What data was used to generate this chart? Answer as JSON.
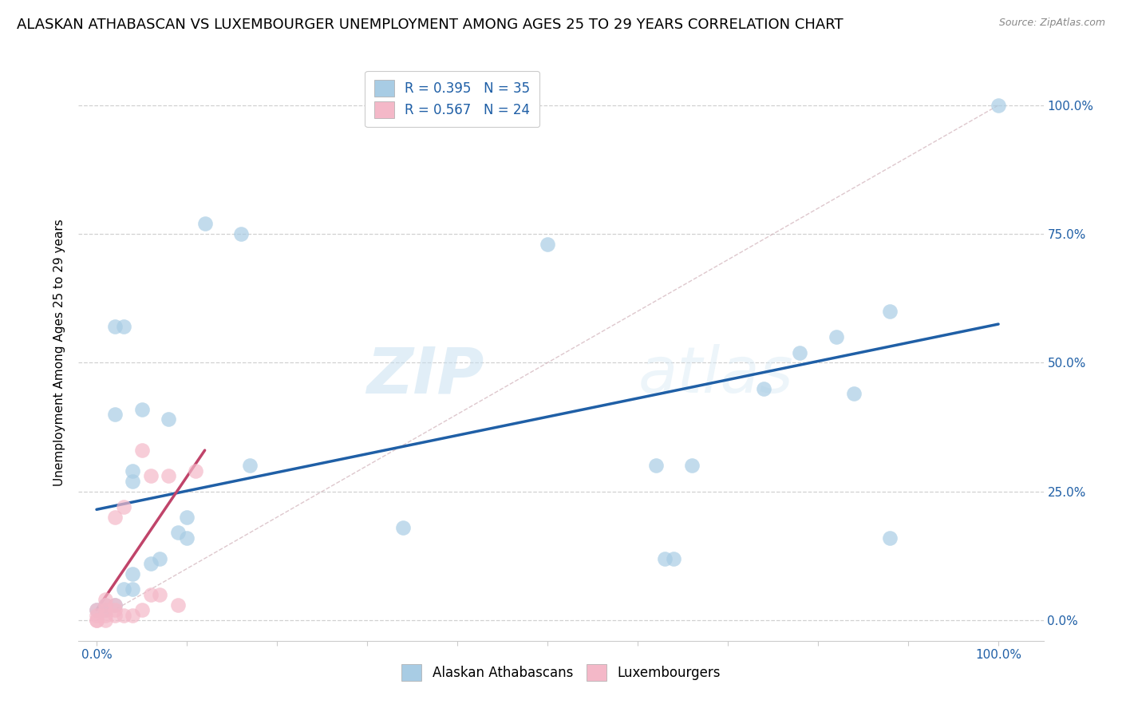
{
  "title": "ALASKAN ATHABASCAN VS LUXEMBOURGER UNEMPLOYMENT AMONG AGES 25 TO 29 YEARS CORRELATION CHART",
  "source": "Source: ZipAtlas.com",
  "ylabel": "Unemployment Among Ages 25 to 29 years",
  "watermark": "ZIPatlas",
  "blue_scatter_x": [
    0.02,
    0.03,
    0.12,
    0.16,
    0.5,
    0.02,
    0.04,
    0.04,
    0.05,
    0.08,
    0.09,
    0.1,
    0.1,
    0.17,
    0.34,
    0.62,
    0.66,
    0.74,
    0.78,
    0.82,
    0.84,
    0.88,
    1.0,
    0.0,
    0.01,
    0.01,
    0.02,
    0.03,
    0.04,
    0.04,
    0.06,
    0.07,
    0.63,
    0.64,
    0.88
  ],
  "blue_scatter_y": [
    0.57,
    0.57,
    0.77,
    0.75,
    0.73,
    0.4,
    0.29,
    0.27,
    0.41,
    0.39,
    0.17,
    0.2,
    0.16,
    0.3,
    0.18,
    0.3,
    0.3,
    0.45,
    0.52,
    0.55,
    0.44,
    0.6,
    1.0,
    0.02,
    0.02,
    0.03,
    0.03,
    0.06,
    0.06,
    0.09,
    0.11,
    0.12,
    0.12,
    0.12,
    0.16
  ],
  "pink_scatter_x": [
    0.0,
    0.0,
    0.0,
    0.0,
    0.01,
    0.01,
    0.01,
    0.01,
    0.01,
    0.02,
    0.02,
    0.02,
    0.02,
    0.03,
    0.03,
    0.04,
    0.05,
    0.05,
    0.06,
    0.06,
    0.07,
    0.08,
    0.09,
    0.11
  ],
  "pink_scatter_y": [
    0.0,
    0.0,
    0.01,
    0.02,
    0.0,
    0.01,
    0.02,
    0.03,
    0.04,
    0.01,
    0.02,
    0.03,
    0.2,
    0.01,
    0.22,
    0.01,
    0.02,
    0.33,
    0.05,
    0.28,
    0.05,
    0.28,
    0.03,
    0.29
  ],
  "blue_R": 0.395,
  "blue_N": 35,
  "pink_R": 0.567,
  "pink_N": 24,
  "blue_line_x": [
    0.0,
    1.0
  ],
  "blue_line_y": [
    0.215,
    0.575
  ],
  "pink_line_x": [
    0.0,
    0.12
  ],
  "pink_line_y": [
    0.02,
    0.33
  ],
  "blue_color": "#a8cce4",
  "blue_line_color": "#1f5fa6",
  "pink_color": "#f4b8c8",
  "pink_line_color": "#c0446a",
  "diagonal_line_x": [
    0.0,
    1.0
  ],
  "diagonal_line_y": [
    0.0,
    1.0
  ],
  "xlim": [
    -0.02,
    1.05
  ],
  "ylim": [
    -0.04,
    1.08
  ],
  "xtick_minor_positions": [
    0.0,
    0.1,
    0.2,
    0.3,
    0.4,
    0.5,
    0.6,
    0.7,
    0.8,
    0.9,
    1.0
  ],
  "xtick_label_positions": [
    0.0,
    1.0
  ],
  "xtick_label_values": [
    "0.0%",
    "100.0%"
  ],
  "ytick_grid_positions": [
    0.0,
    0.25,
    0.5,
    0.75,
    1.0
  ],
  "ytick_right_labels": [
    "0.0%",
    "25.0%",
    "50.0%",
    "75.0%",
    "100.0%"
  ],
  "grid_color": "#cccccc",
  "background_color": "#ffffff",
  "title_fontsize": 13,
  "axis_label_fontsize": 11,
  "tick_fontsize": 11,
  "legend_fontsize": 12,
  "tick_color": "#1f5fa6"
}
